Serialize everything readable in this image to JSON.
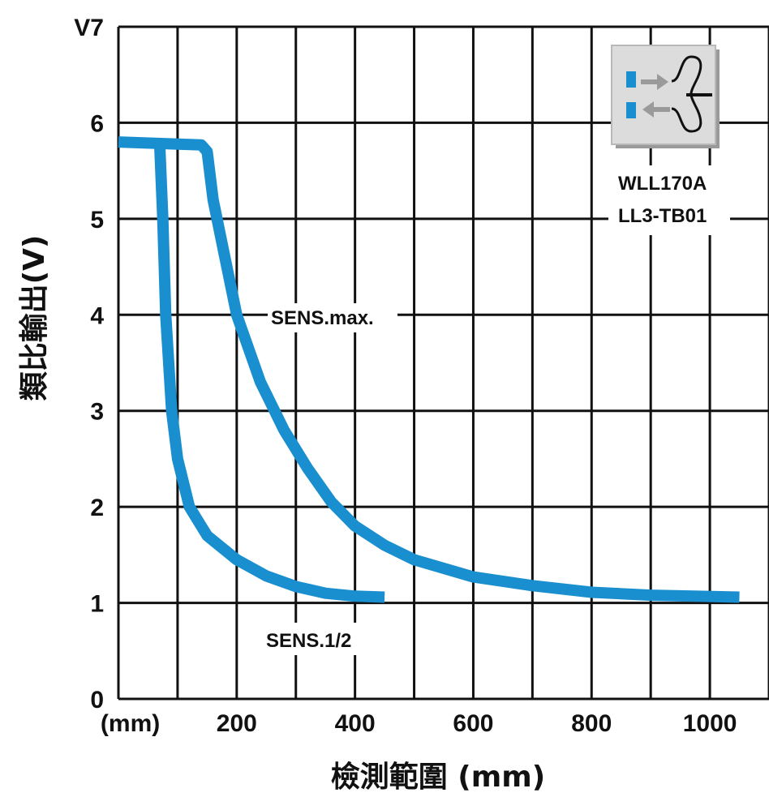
{
  "chart_data": {
    "type": "line",
    "xlabel": "檢測範圍 (mm)",
    "ylabel": "類比輸出(V)",
    "xlim": [
      0,
      1100
    ],
    "ylim": [
      0,
      7
    ],
    "x_ticks": [
      "(mm)",
      "200",
      "400",
      "600",
      "800",
      "1000"
    ],
    "y_ticks": [
      "0",
      "1",
      "2",
      "3",
      "4",
      "5",
      "6",
      "V7"
    ],
    "grid": true,
    "line_color": "#1a8fd0",
    "series": [
      {
        "name": "SENS.max.",
        "points": [
          [
            0,
            5.8
          ],
          [
            140,
            5.77
          ],
          [
            150,
            5.7
          ],
          [
            160,
            5.2
          ],
          [
            180,
            4.6
          ],
          [
            200,
            4.0
          ],
          [
            240,
            3.3
          ],
          [
            280,
            2.8
          ],
          [
            320,
            2.4
          ],
          [
            360,
            2.05
          ],
          [
            400,
            1.8
          ],
          [
            450,
            1.6
          ],
          [
            500,
            1.45
          ],
          [
            600,
            1.27
          ],
          [
            700,
            1.18
          ],
          [
            800,
            1.11
          ],
          [
            900,
            1.08
          ],
          [
            1050,
            1.06
          ]
        ]
      },
      {
        "name": "SENS.1/2",
        "points": [
          [
            70,
            5.75
          ],
          [
            75,
            5.0
          ],
          [
            80,
            4.0
          ],
          [
            90,
            3.0
          ],
          [
            100,
            2.5
          ],
          [
            120,
            2.0
          ],
          [
            150,
            1.7
          ],
          [
            200,
            1.45
          ],
          [
            250,
            1.28
          ],
          [
            300,
            1.17
          ],
          [
            350,
            1.1
          ],
          [
            400,
            1.07
          ],
          [
            450,
            1.06
          ]
        ]
      }
    ],
    "annotations": {
      "sens_max": "SENS.max.",
      "sens_half": "SENS.1/2"
    },
    "legend_box": {
      "lines": [
        "WLL170A",
        "LL3-TB01"
      ],
      "icon": "fiber-optic-sensor-icon"
    }
  }
}
